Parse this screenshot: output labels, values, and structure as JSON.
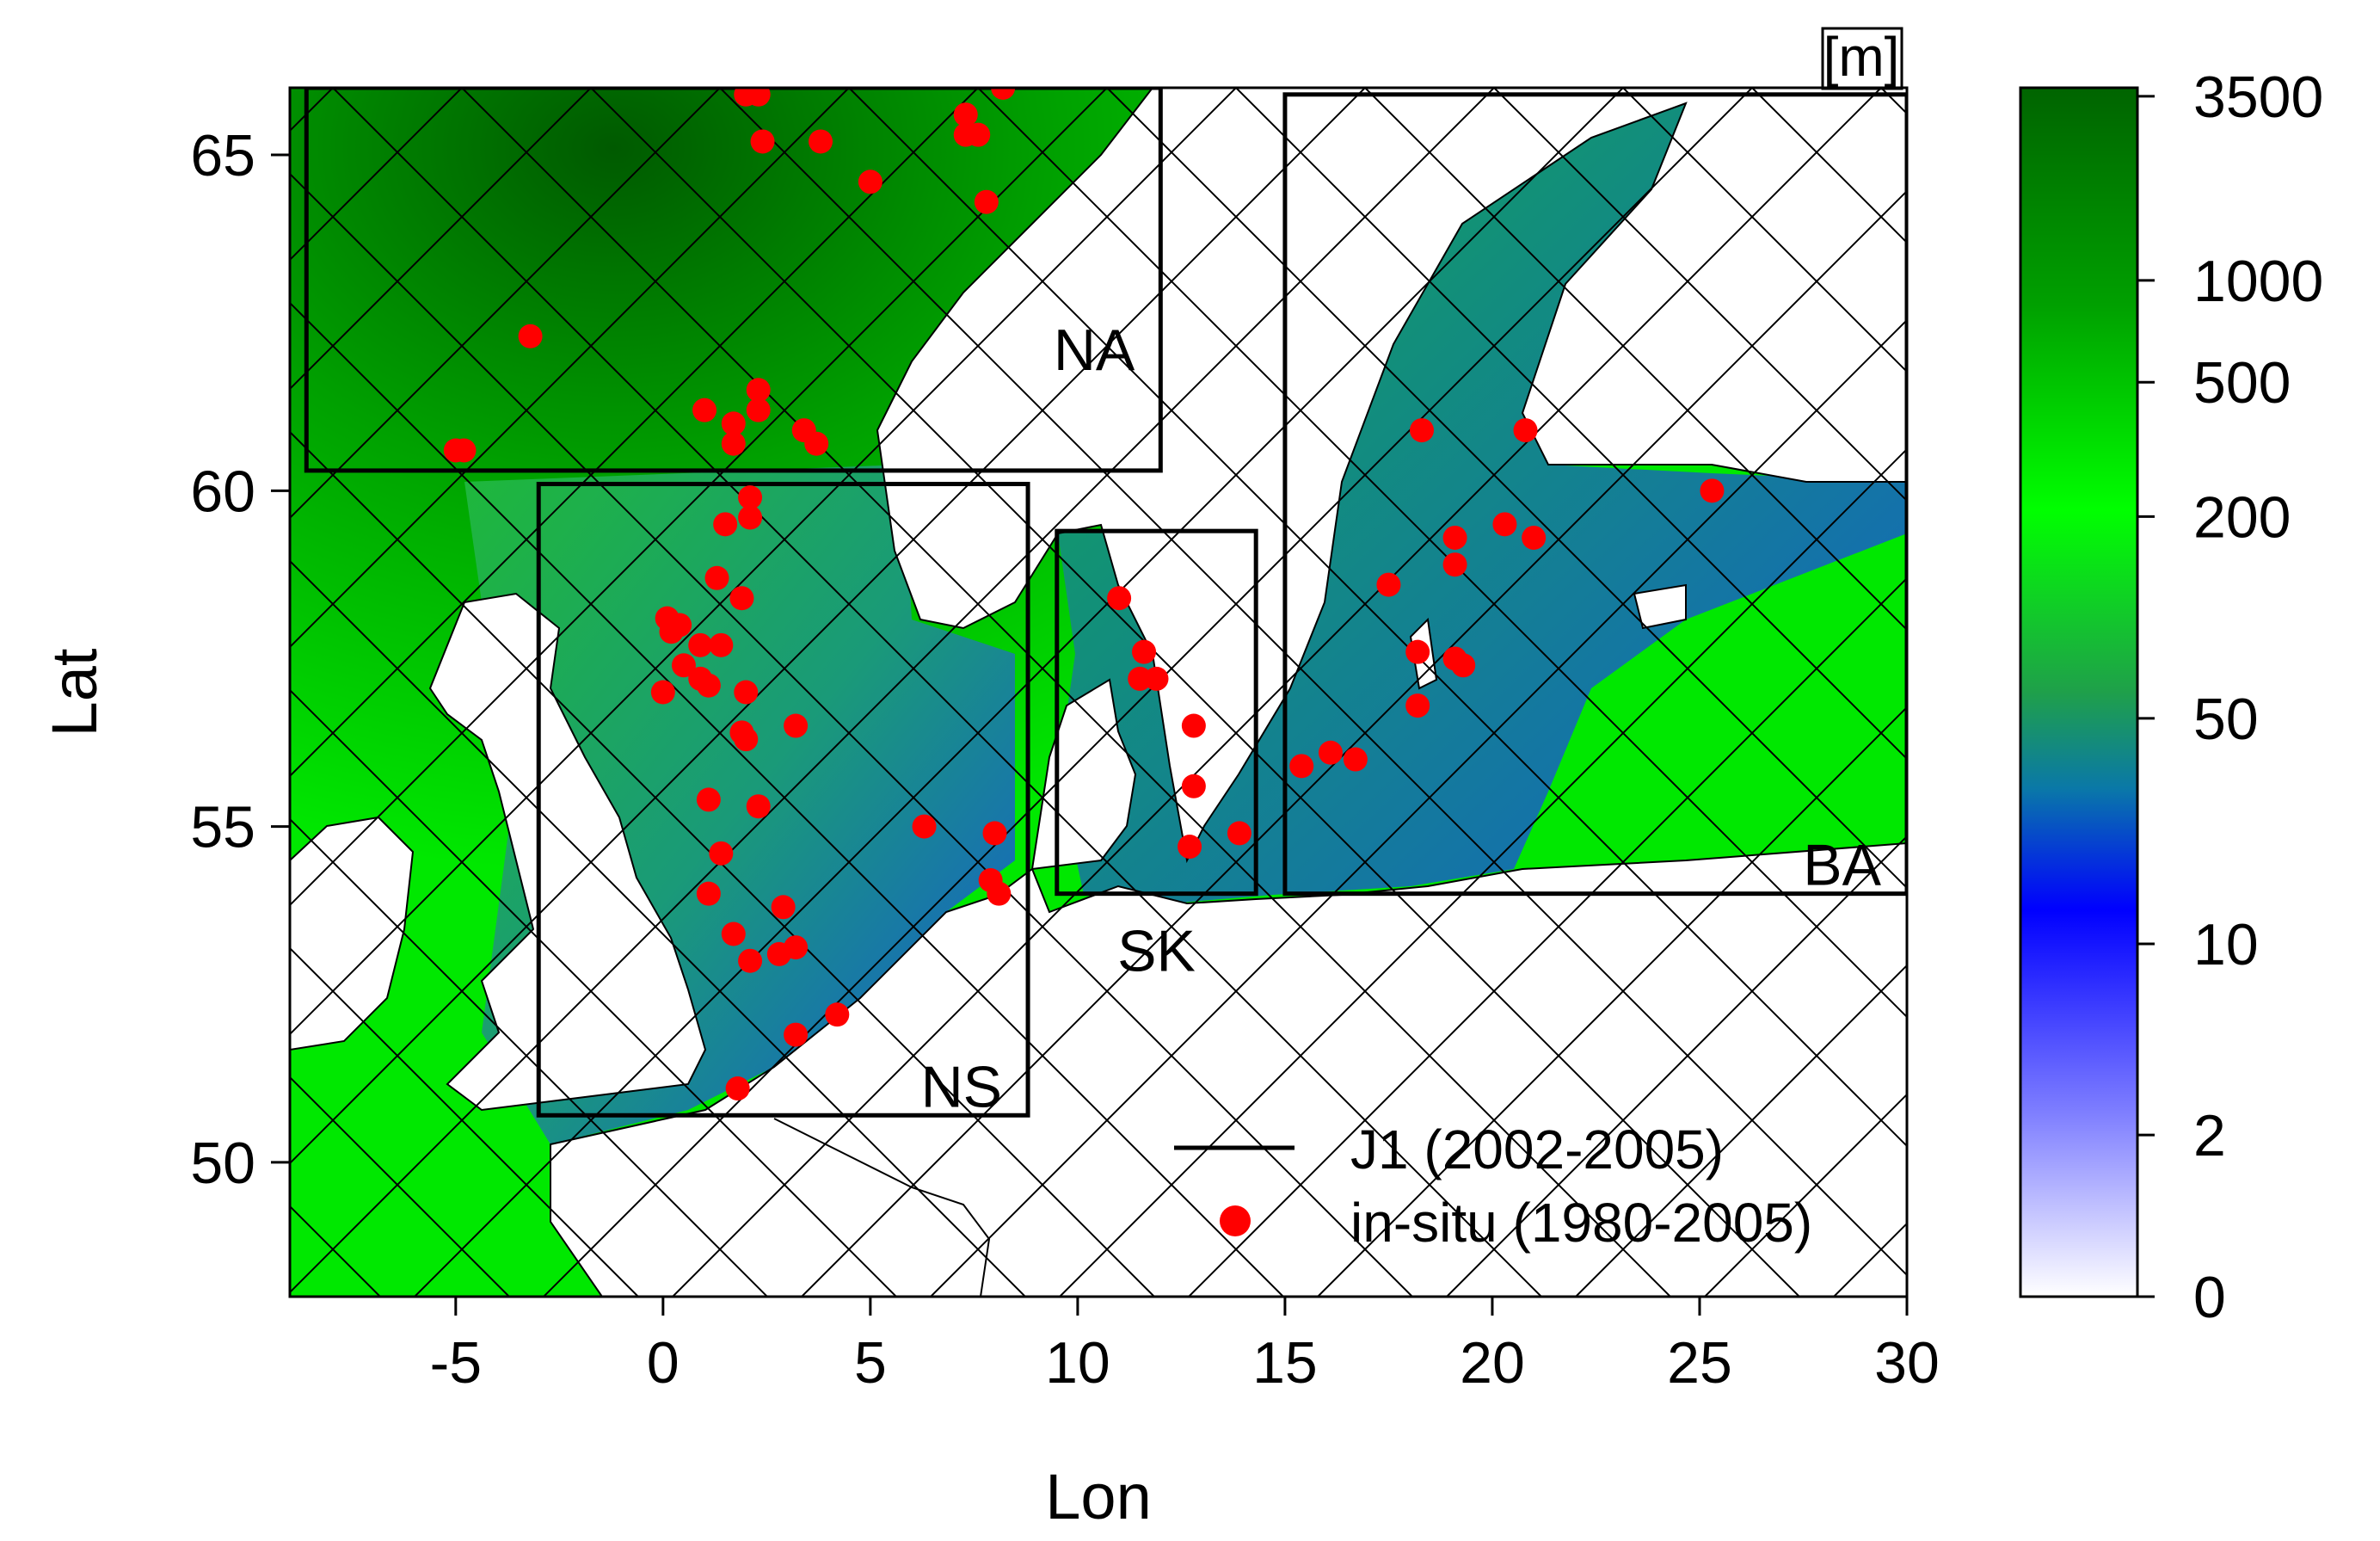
{
  "map": {
    "xlabel": "Lon",
    "ylabel": "Lat",
    "lon_range": [
      -9,
      30
    ],
    "lat_range": [
      48,
      66
    ],
    "x_ticks": [
      -5,
      0,
      5,
      10,
      15,
      20,
      25,
      30
    ],
    "y_ticks": [
      50,
      55,
      60,
      65
    ],
    "x_tick_labels": [
      "-5",
      "0",
      "5",
      "10",
      "15",
      "20",
      "25",
      "30"
    ],
    "y_tick_labels": [
      "50",
      "55",
      "60",
      "65"
    ],
    "colors": {
      "land": "#ffffff",
      "deep": "#006400",
      "mid": "#00ff00",
      "shallow": "#0000ff",
      "insitu": "#ff0000",
      "track": "#000000"
    }
  },
  "regions": [
    {
      "label": "NA",
      "lon": [
        -8.6,
        12
      ],
      "lat": [
        60.3,
        66
      ]
    },
    {
      "label": "NS",
      "lon": [
        -3,
        8.8
      ],
      "lat": [
        50.7,
        60.1
      ]
    },
    {
      "label": "SK",
      "lon": [
        9.5,
        14.3
      ],
      "lat": [
        54,
        59.4
      ]
    },
    {
      "label": "BA",
      "lon": [
        15,
        30
      ],
      "lat": [
        54,
        65.9
      ]
    }
  ],
  "colorbar": {
    "unit": "[m]",
    "tick_labels": [
      "3500",
      "1000",
      "500",
      "200",
      "50",
      "10",
      "2",
      "0"
    ],
    "tick_values": [
      3500,
      1000,
      500,
      200,
      50,
      10,
      2,
      0
    ]
  },
  "legend": {
    "track_label": "J1 (2002-2005)",
    "insitu_label": "in-situ (1980-2005)"
  },
  "insitu_points": [
    [
      -5.0,
      60.6
    ],
    [
      -4.8,
      60.6
    ],
    [
      -3.2,
      62.3
    ],
    [
      1.0,
      61.2
    ],
    [
      1.7,
      61.0
    ],
    [
      1.7,
      60.7
    ],
    [
      2.3,
      61.5
    ],
    [
      2.3,
      61.2
    ],
    [
      3.4,
      60.9
    ],
    [
      3.7,
      60.7
    ],
    [
      2.1,
      59.9
    ],
    [
      1.5,
      59.5
    ],
    [
      2.1,
      59.6
    ],
    [
      1.3,
      58.7
    ],
    [
      1.9,
      58.4
    ],
    [
      0.1,
      58.1
    ],
    [
      0.4,
      58.0
    ],
    [
      0.2,
      57.9
    ],
    [
      0.5,
      57.4
    ],
    [
      0.9,
      57.7
    ],
    [
      1.4,
      57.7
    ],
    [
      0.9,
      57.2
    ],
    [
      1.1,
      57.1
    ],
    [
      0.0,
      57.0
    ],
    [
      2.0,
      57.0
    ],
    [
      1.9,
      56.4
    ],
    [
      2.0,
      56.3
    ],
    [
      3.2,
      56.5
    ],
    [
      1.1,
      55.4
    ],
    [
      2.3,
      55.3
    ],
    [
      1.4,
      54.6
    ],
    [
      1.1,
      54.0
    ],
    [
      6.3,
      55.0
    ],
    [
      8.0,
      54.9
    ],
    [
      7.9,
      54.2
    ],
    [
      8.1,
      54.0
    ],
    [
      1.7,
      53.4
    ],
    [
      2.9,
      53.8
    ],
    [
      2.1,
      53.0
    ],
    [
      2.8,
      53.1
    ],
    [
      3.2,
      53.2
    ],
    [
      4.2,
      52.2
    ],
    [
      3.2,
      51.9
    ],
    [
      1.8,
      51.1
    ],
    [
      2.0,
      65.9
    ],
    [
      2.3,
      65.9
    ],
    [
      2.4,
      65.2
    ],
    [
      3.8,
      65.2
    ],
    [
      5.0,
      64.6
    ],
    [
      7.3,
      65.6
    ],
    [
      7.3,
      65.3
    ],
    [
      7.6,
      65.3
    ],
    [
      7.8,
      64.3
    ],
    [
      8.2,
      66.0
    ],
    [
      11.0,
      58.4
    ],
    [
      11.6,
      57.6
    ],
    [
      11.5,
      57.2
    ],
    [
      11.9,
      57.2
    ],
    [
      12.8,
      56.5
    ],
    [
      12.8,
      55.6
    ],
    [
      12.7,
      54.7
    ],
    [
      13.9,
      54.9
    ],
    [
      15.4,
      55.9
    ],
    [
      16.1,
      56.1
    ],
    [
      16.7,
      56.0
    ],
    [
      17.5,
      58.6
    ],
    [
      18.2,
      57.6
    ],
    [
      18.2,
      56.8
    ],
    [
      19.1,
      57.5
    ],
    [
      19.3,
      57.4
    ],
    [
      19.1,
      59.3
    ],
    [
      19.1,
      58.9
    ],
    [
      20.3,
      59.5
    ],
    [
      21.0,
      59.3
    ],
    [
      25.3,
      60.0
    ],
    [
      18.3,
      60.9
    ],
    [
      20.8,
      60.9
    ]
  ]
}
